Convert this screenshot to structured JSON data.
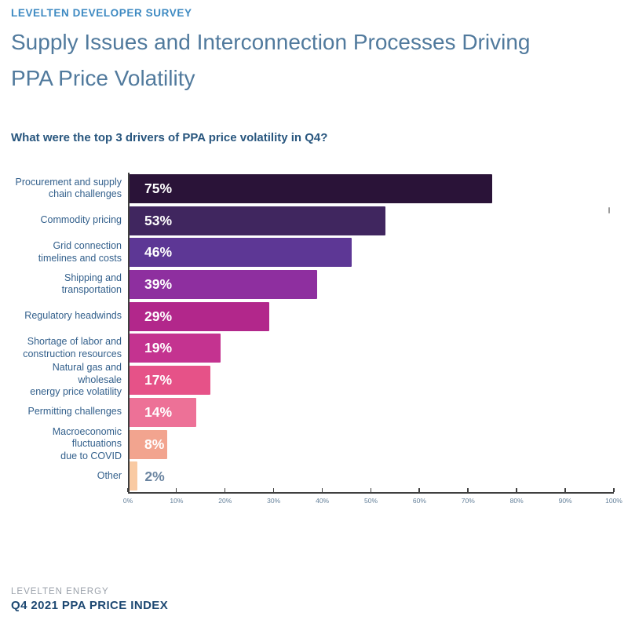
{
  "header": {
    "eyebrow": "LEVELTEN DEVELOPER SURVEY",
    "title": "Supply Issues and Interconnection Processes Driving\nPPA Price Volatility"
  },
  "question": "What were the top 3 drivers of PPA price volatility in Q4?",
  "chart_data": {
    "type": "bar",
    "orientation": "horizontal",
    "title": "What were the top 3 drivers of PPA price volatility in Q4?",
    "categories": [
      "Procurement and supply\nchain challenges",
      "Commodity pricing",
      "Grid connection\ntimelines and costs",
      "Shipping and\ntransportation",
      "Regulatory headwinds",
      "Shortage of labor and\nconstruction resources",
      "Natural gas and wholesale\nenergy price volatility",
      "Permitting challenges",
      "Macroeconomic\nfluctuations\ndue to COVID",
      "Other"
    ],
    "values": [
      75,
      53,
      46,
      39,
      29,
      19,
      17,
      14,
      8,
      2
    ],
    "value_labels": [
      "75%",
      "53%",
      "46%",
      "39%",
      "29%",
      "19%",
      "17%",
      "14%",
      "8%",
      "2%"
    ],
    "bar_colors": [
      "#2a1338",
      "#40265f",
      "#5d3795",
      "#8e2f9f",
      "#b2278b",
      "#c43390",
      "#e65288",
      "#ed7197",
      "#f2a48f",
      "#f9caa3"
    ],
    "xlabel": "",
    "ylabel": "",
    "xlim": [
      0,
      100
    ],
    "x_ticks": [
      "0%",
      "10%",
      "20%",
      "30%",
      "40%",
      "50%",
      "60%",
      "70%",
      "80%",
      "90%",
      "100%"
    ],
    "grid": false,
    "legend": "none",
    "outside_label_threshold": 5,
    "outside_label_color": "#6a84a0"
  },
  "footer": {
    "company": "LEVELTEN ENERGY",
    "report": "Q4 2021 PPA PRICE INDEX"
  },
  "colors": {
    "eyebrow": "#3e8ac2",
    "title": "#517a9d",
    "question": "#28567e",
    "category_label": "#33608c",
    "value_label": "#ffffff",
    "axis": "#3f3f3f",
    "tick_label": "#64809a",
    "footer_company": "#9ba2ab",
    "footer_report": "#1d4872",
    "background": "#ffffff"
  }
}
